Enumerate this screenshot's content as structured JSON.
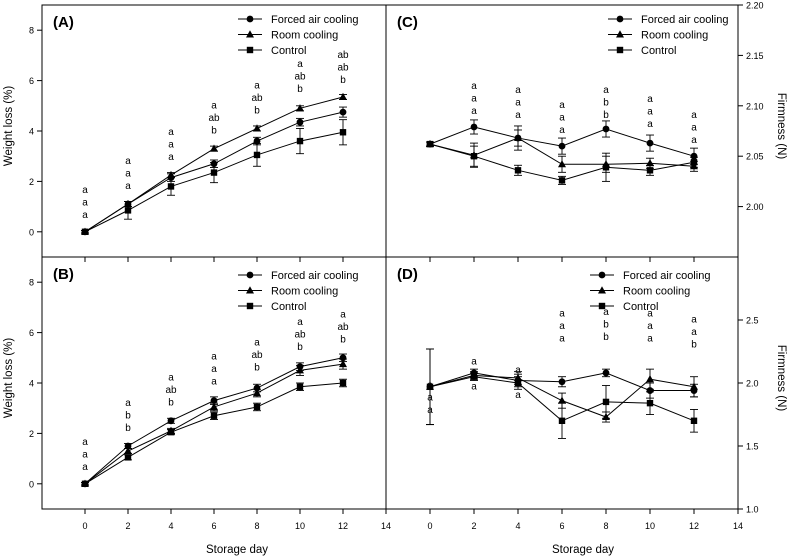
{
  "chart_data": [
    {
      "panel": "(A)",
      "type": "line",
      "ylabel": "Weight loss (%)",
      "y_axis_side": "left",
      "show_xlabel": false,
      "xlim": [
        -2,
        14
      ],
      "ylim": [
        -1,
        9
      ],
      "x_ticks": [
        0,
        2,
        4,
        6,
        8,
        10,
        12,
        14
      ],
      "y_ticks": [
        0,
        2,
        4,
        6,
        8
      ],
      "x": [
        0,
        2,
        4,
        6,
        8,
        10,
        12
      ],
      "legend": {
        "position": "top-right"
      },
      "series": [
        {
          "name": "Forced air cooling",
          "marker": "circle",
          "values": [
            0.0,
            1.1,
            2.15,
            2.7,
            3.6,
            4.35,
            4.75
          ],
          "errors": [
            0.05,
            0.1,
            0.15,
            0.15,
            0.15,
            0.15,
            0.2
          ]
        },
        {
          "name": "Room cooling",
          "marker": "triangle",
          "values": [
            0.0,
            1.1,
            2.25,
            3.3,
            4.1,
            4.9,
            5.35
          ],
          "errors": [
            0.05,
            0.1,
            0.1,
            0.1,
            0.1,
            0.1,
            0.1
          ]
        },
        {
          "name": "Control",
          "marker": "square",
          "values": [
            0.0,
            0.85,
            1.8,
            2.35,
            3.05,
            3.6,
            3.95
          ],
          "errors": [
            0.05,
            0.35,
            0.35,
            0.4,
            0.45,
            0.5,
            0.5
          ]
        }
      ],
      "letter_groups": [
        {
          "x": 0,
          "letters": [
            "a",
            "a",
            "a"
          ],
          "baseline": 0.55
        },
        {
          "x": 2,
          "letters": [
            "a",
            "a",
            "a"
          ],
          "baseline": 1.7
        },
        {
          "x": 4,
          "letters": [
            "a",
            "a",
            "a"
          ],
          "baseline": 2.85
        },
        {
          "x": 6,
          "letters": [
            "a",
            "ab",
            "b"
          ],
          "baseline": 3.9
        },
        {
          "x": 8,
          "letters": [
            "a",
            "ab",
            "b"
          ],
          "baseline": 4.7
        },
        {
          "x": 10,
          "letters": [
            "a",
            "ab",
            "b"
          ],
          "baseline": 5.55
        },
        {
          "x": 12,
          "letters": [
            "ab",
            "ab",
            "b"
          ],
          "baseline": 5.9
        }
      ]
    },
    {
      "panel": "(C)",
      "type": "line",
      "ylabel": "Firmness (N)",
      "y_axis_side": "right",
      "show_xlabel": false,
      "xlim": [
        -2,
        14
      ],
      "ylim": [
        1.95,
        2.2
      ],
      "x_ticks": [
        0,
        2,
        4,
        6,
        8,
        10,
        12,
        14
      ],
      "y_ticks": [
        2.0,
        2.05,
        2.1,
        2.15,
        2.2
      ],
      "y_tick_labels": [
        "2.00",
        "2.05",
        "2.10",
        "2.15",
        "2.20"
      ],
      "x": [
        0,
        2,
        4,
        6,
        8,
        10,
        12
      ],
      "legend": {
        "position": "top-right"
      },
      "series": [
        {
          "name": "Forced air cooling",
          "marker": "circle",
          "values": [
            2.062,
            2.079,
            2.068,
            2.06,
            2.077,
            2.063,
            2.05
          ],
          "errors": [
            0.002,
            0.007,
            0.008,
            0.008,
            0.008,
            0.008,
            0.008
          ]
        },
        {
          "name": "Room cooling",
          "marker": "triangle",
          "values": [
            2.062,
            2.051,
            2.068,
            2.042,
            2.042,
            2.043,
            2.04
          ],
          "errors": [
            0.002,
            0.012,
            0.012,
            0.008,
            0.008,
            0.005,
            0.005
          ]
        },
        {
          "name": "Control",
          "marker": "square",
          "values": [
            2.062,
            2.05,
            2.036,
            2.026,
            2.039,
            2.036,
            2.044
          ],
          "errors": [
            0.002,
            0.01,
            0.005,
            0.004,
            0.014,
            0.005,
            0.005
          ]
        }
      ],
      "letter_groups": [
        {
          "x": 2,
          "letters": [
            "a",
            "a",
            "a"
          ],
          "baseline": 2.092
        },
        {
          "x": 4,
          "letters": [
            "a",
            "a",
            "a"
          ],
          "baseline": 2.088
        },
        {
          "x": 6,
          "letters": [
            "a",
            "a",
            "a"
          ],
          "baseline": 2.073
        },
        {
          "x": 8,
          "letters": [
            "a",
            "b",
            "b"
          ],
          "baseline": 2.088
        },
        {
          "x": 10,
          "letters": [
            "a",
            "a",
            "a"
          ],
          "baseline": 2.079
        },
        {
          "x": 12,
          "letters": [
            "a",
            "a",
            "a"
          ],
          "baseline": 2.063
        }
      ]
    },
    {
      "panel": "(B)",
      "type": "line",
      "ylabel": "Weight loss (%)",
      "y_axis_side": "left",
      "show_xlabel": true,
      "xlabel": "Storage day",
      "xlim": [
        -2,
        14
      ],
      "ylim": [
        -1,
        9
      ],
      "x_ticks": [
        0,
        2,
        4,
        6,
        8,
        10,
        12,
        14
      ],
      "y_ticks": [
        0,
        2,
        4,
        6,
        8
      ],
      "x": [
        0,
        2,
        4,
        6,
        8,
        10,
        12
      ],
      "legend": {
        "position": "top-right"
      },
      "series": [
        {
          "name": "Forced air cooling",
          "marker": "circle",
          "values": [
            0.0,
            1.5,
            2.5,
            3.3,
            3.8,
            4.65,
            5.0
          ],
          "errors": [
            0.05,
            0.1,
            0.1,
            0.15,
            0.15,
            0.15,
            0.15
          ]
        },
        {
          "name": "Room cooling",
          "marker": "triangle",
          "values": [
            0.0,
            1.3,
            2.1,
            3.05,
            3.6,
            4.5,
            4.75
          ],
          "errors": [
            0.05,
            0.1,
            0.1,
            0.15,
            0.15,
            0.2,
            0.2
          ]
        },
        {
          "name": "Control",
          "marker": "square",
          "values": [
            0.0,
            1.05,
            2.05,
            2.7,
            3.05,
            3.85,
            4.0
          ],
          "errors": [
            0.05,
            0.1,
            0.1,
            0.15,
            0.15,
            0.15,
            0.15
          ]
        }
      ],
      "letter_groups": [
        {
          "x": 0,
          "letters": [
            "a",
            "a",
            "a"
          ],
          "baseline": 0.55
        },
        {
          "x": 2,
          "letters": [
            "a",
            "b",
            "b"
          ],
          "baseline": 2.1
        },
        {
          "x": 4,
          "letters": [
            "a",
            "ab",
            "b"
          ],
          "baseline": 3.1
        },
        {
          "x": 6,
          "letters": [
            "a",
            "a",
            "a"
          ],
          "baseline": 3.95
        },
        {
          "x": 8,
          "letters": [
            "a",
            "ab",
            "b"
          ],
          "baseline": 4.5
        },
        {
          "x": 10,
          "letters": [
            "a",
            "ab",
            "b"
          ],
          "baseline": 5.3
        },
        {
          "x": 12,
          "letters": [
            "a",
            "ab",
            "b"
          ],
          "baseline": 5.6
        }
      ]
    },
    {
      "panel": "(D)",
      "type": "line",
      "ylabel": "Firmness (N)",
      "y_axis_side": "right",
      "show_xlabel": true,
      "xlabel": "Storage day",
      "xlim": [
        -2,
        14
      ],
      "ylim": [
        1.0,
        3.0
      ],
      "x_ticks": [
        0,
        2,
        4,
        6,
        8,
        10,
        12,
        14
      ],
      "y_ticks": [
        1.0,
        1.5,
        2.0,
        2.5
      ],
      "y_tick_labels": [
        "1.0",
        "1.5",
        "2.0",
        "2.5"
      ],
      "x": [
        0,
        2,
        4,
        6,
        8,
        10,
        12
      ],
      "legend": {
        "position": "top-right"
      },
      "series": [
        {
          "name": "Forced air cooling",
          "marker": "circle",
          "values": [
            1.97,
            2.08,
            2.02,
            2.01,
            2.08,
            1.94,
            1.94
          ],
          "errors": [
            0.3,
            0.03,
            0.05,
            0.04,
            0.03,
            0.06,
            0.05
          ]
        },
        {
          "name": "Room cooling",
          "marker": "triangle",
          "values": [
            1.97,
            2.06,
            2.04,
            1.86,
            1.73,
            2.03,
            1.97
          ],
          "errors": [
            0.3,
            0.03,
            0.05,
            0.06,
            0.04,
            0.08,
            0.08
          ]
        },
        {
          "name": "Control",
          "marker": "square",
          "values": [
            1.97,
            2.05,
            2.0,
            1.7,
            1.85,
            1.84,
            1.7
          ],
          "errors": [
            0.3,
            0.03,
            0.05,
            0.14,
            0.13,
            0.09,
            0.09
          ]
        }
      ],
      "letter_groups": [
        {
          "x": 0,
          "letters": [
            "a",
            "a",
            "a"
          ],
          "baseline": 1.76
        },
        {
          "x": 2,
          "letters": [
            "a",
            "a",
            "a"
          ],
          "baseline": 1.95
        },
        {
          "x": 4,
          "letters": [
            "a",
            "a",
            "a"
          ],
          "baseline": 1.88
        },
        {
          "x": 6,
          "letters": [
            "a",
            "a",
            "a"
          ],
          "baseline": 2.33
        },
        {
          "x": 8,
          "letters": [
            "a",
            "b",
            "b"
          ],
          "baseline": 2.34
        },
        {
          "x": 10,
          "letters": [
            "a",
            "a",
            "a"
          ],
          "baseline": 2.33
        },
        {
          "x": 12,
          "letters": [
            "a",
            "a",
            "b"
          ],
          "baseline": 2.28
        }
      ]
    }
  ]
}
